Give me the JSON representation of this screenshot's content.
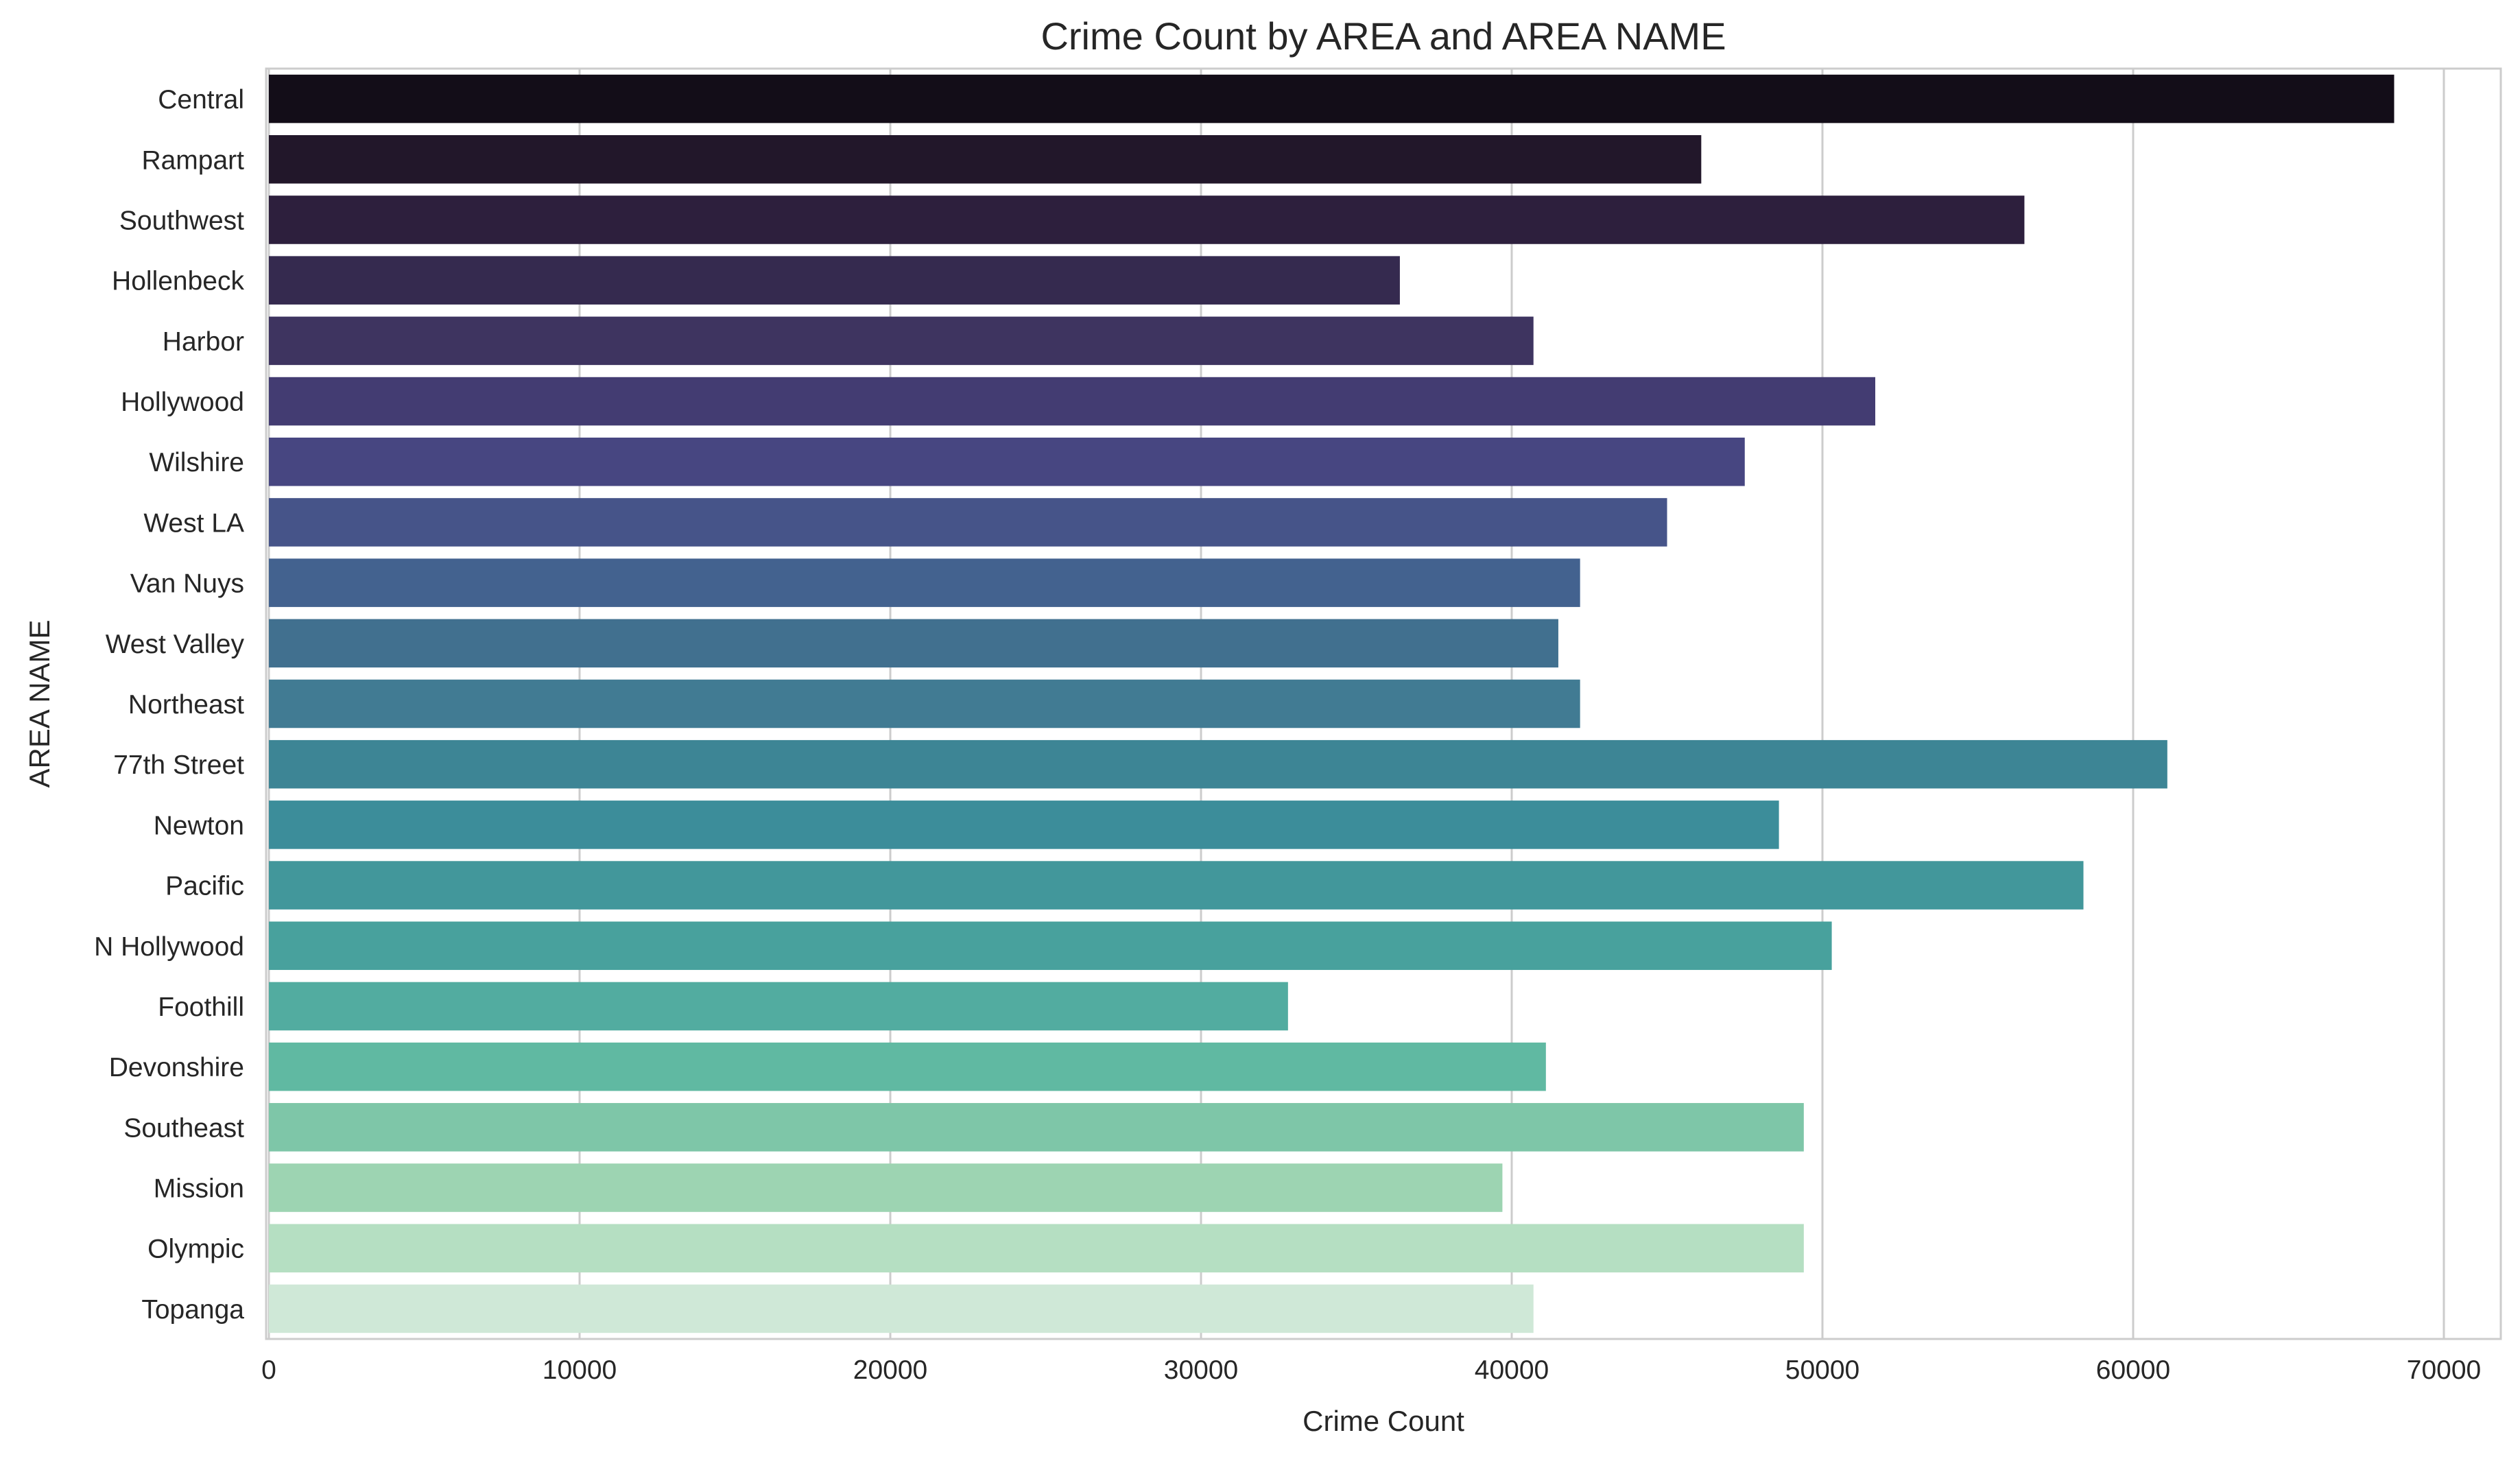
{
  "chart_data": {
    "type": "bar",
    "orientation": "horizontal",
    "title": "Crime Count by AREA and AREA NAME",
    "xlabel": "Crime Count",
    "ylabel": "AREA NAME",
    "xlim": [
      0,
      72000
    ],
    "xticks": [
      0,
      10000,
      20000,
      30000,
      40000,
      50000,
      60000,
      70000
    ],
    "grid": true,
    "legend": "none",
    "categories": [
      "Central",
      "Rampart",
      "Southwest",
      "Hollenbeck",
      "Harbor",
      "Hollywood",
      "Wilshire",
      "West LA",
      "Van Nuys",
      "West Valley",
      "Northeast",
      "77th Street",
      "Newton",
      "Pacific",
      "N Hollywood",
      "Foothill",
      "Devonshire",
      "Southeast",
      "Mission",
      "Olympic",
      "Topanga"
    ],
    "values": [
      68400,
      46100,
      56500,
      36400,
      40700,
      51700,
      47500,
      45000,
      42200,
      41500,
      42200,
      61100,
      48600,
      58400,
      50300,
      32800,
      41100,
      49400,
      39700,
      49400,
      40700
    ],
    "colors": [
      "#130d18",
      "#22172a",
      "#2d1f3d",
      "#352a4f",
      "#3e3460",
      "#433c72",
      "#474681",
      "#465489",
      "#43628f",
      "#41708f",
      "#417b93",
      "#3d8595",
      "#3c8d9a",
      "#42979b",
      "#48a19d",
      "#52aca0",
      "#60b9a2",
      "#7ec6a8",
      "#9dd4b2",
      "#b5dfc2",
      "#cfe8d7"
    ]
  }
}
